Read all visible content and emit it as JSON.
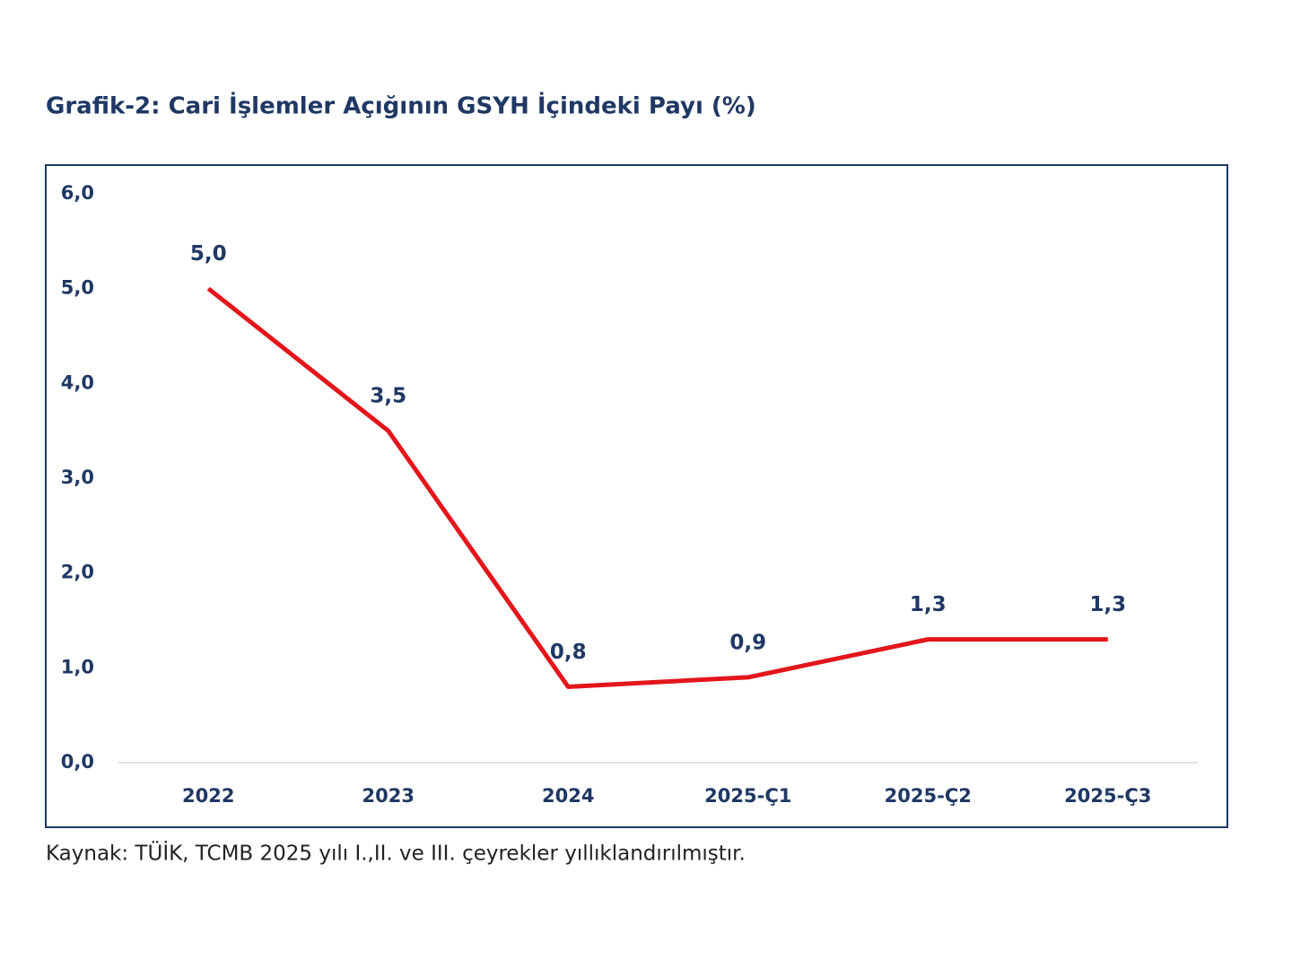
{
  "chart_data": {
    "type": "line",
    "title": "Grafik-2: Cari İşlemler Açığının GSYH İçindeki Payı (%)",
    "note": "Kaynak: TÜİK, TCMB 2025 yılı I.,II. ve III. çeyrekler yıllıklandırılmıştır.",
    "categories": [
      "2022",
      "2023",
      "2024",
      "2025-Ç1",
      "2025-Ç2",
      "2025-Ç3"
    ],
    "series": [
      {
        "color": "#e3161b",
        "values": [
          5.0,
          3.5,
          0.8,
          0.9,
          1.3,
          1.3
        ],
        "value_labels": [
          "5,0",
          "3,5",
          "0,8",
          "0,9",
          "1,3",
          "1,3"
        ]
      }
    ],
    "ylim": [
      0,
      6
    ],
    "yticks": [
      {
        "value": 0,
        "label": "0,0"
      },
      {
        "value": 1,
        "label": "1,0"
      },
      {
        "value": 2,
        "label": "2,0"
      },
      {
        "value": 3,
        "label": "3,0"
      },
      {
        "value": 4,
        "label": "4,0"
      },
      {
        "value": 5,
        "label": "5,0"
      },
      {
        "value": 6,
        "label": "6,0"
      }
    ],
    "grid": false
  }
}
